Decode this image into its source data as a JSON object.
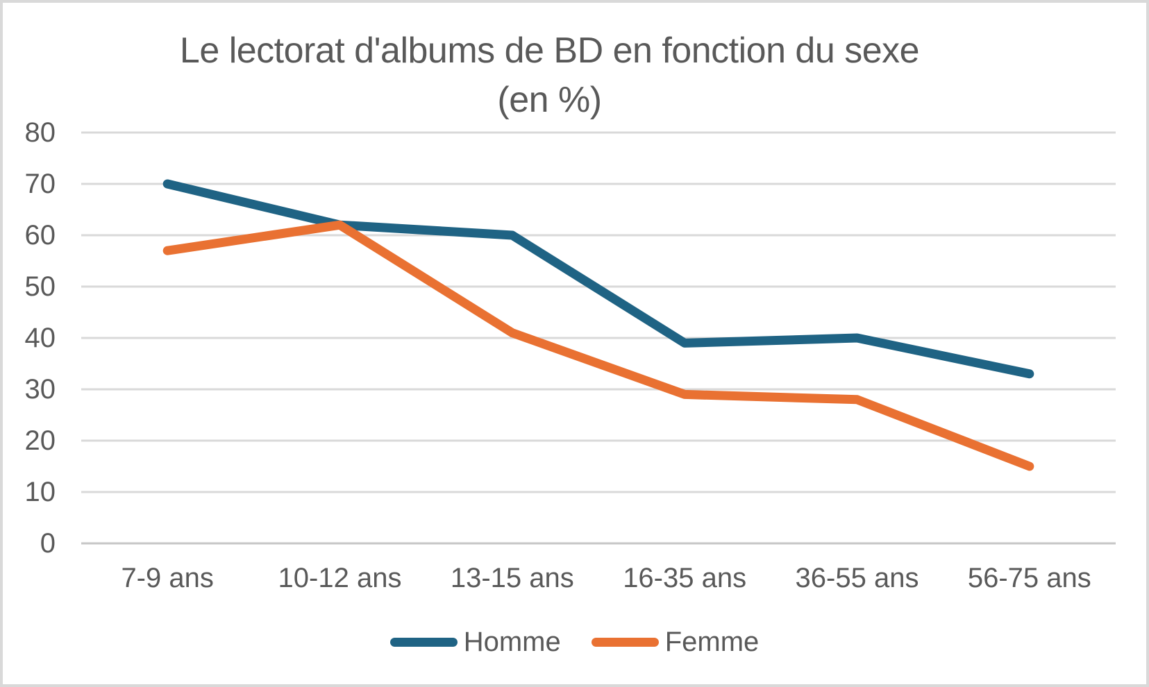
{
  "chart_data": {
    "type": "line",
    "title": "Le lectorat d'albums de BD en fonction du sexe",
    "title_line2": "(en %)",
    "categories": [
      "7-9 ans",
      "10-12 ans",
      "13-15 ans",
      "16-35 ans",
      "36-55 ans",
      "56-75 ans"
    ],
    "series": [
      {
        "name": "Homme",
        "color": "#1F6384",
        "values": [
          70,
          62,
          60,
          39,
          40,
          33
        ]
      },
      {
        "name": "Femme",
        "color": "#E97132",
        "values": [
          57,
          62,
          41,
          29,
          28,
          15
        ]
      }
    ],
    "ylim": [
      0,
      80
    ],
    "yticks": [
      0,
      10,
      20,
      30,
      40,
      50,
      60,
      70,
      80
    ],
    "ytick_step": 10,
    "xlabel": "",
    "ylabel": "",
    "grid": "horizontal",
    "legend_position": "bottom"
  },
  "style": {
    "background_color": "#FFFFFF",
    "frame_border_color": "#D9D9D9",
    "gridline_color": "#D9D9D9",
    "axis_line_color": "#C6C6C6",
    "text_color": "#595959",
    "homme_color": "#1F6384",
    "femme_color": "#E97132"
  }
}
